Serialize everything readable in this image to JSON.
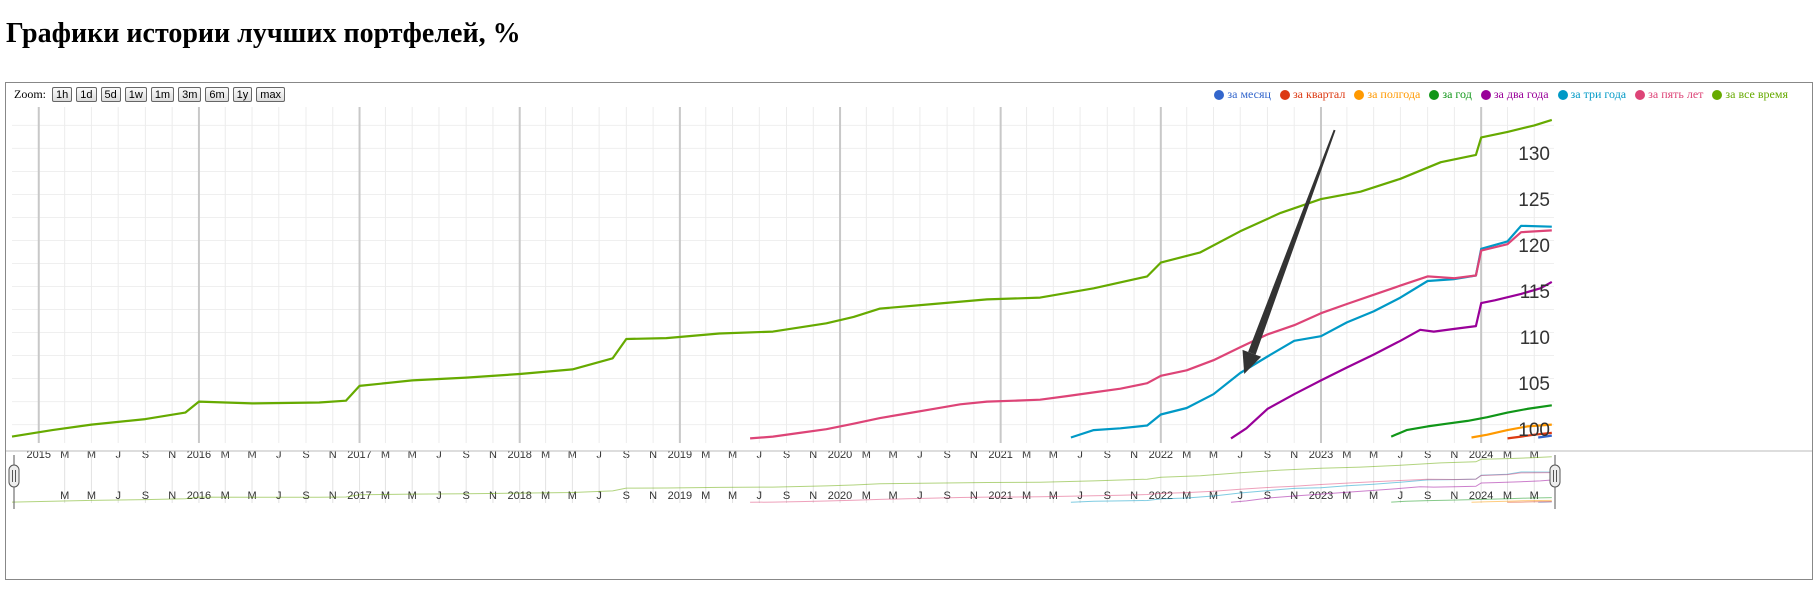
{
  "page": {
    "title": "Графики истории лучших портфелей, %"
  },
  "zoom": {
    "label": "Zoom:",
    "buttons": [
      "1h",
      "1d",
      "5d",
      "1w",
      "1m",
      "3m",
      "6m",
      "1y",
      "max"
    ]
  },
  "chart_data": {
    "type": "line",
    "title": "",
    "xlabel": "",
    "ylabel": "",
    "x_range": [
      "2014-11-01",
      "2024-06-15"
    ],
    "ylim": [
      98.5,
      135
    ],
    "y_ticks": [
      100,
      105,
      110,
      115,
      120,
      125,
      130
    ],
    "x_tick_labels": [
      {
        "date": "2015-01-01",
        "label": "2015"
      },
      {
        "date": "2015-03-01",
        "label": "M"
      },
      {
        "date": "2015-05-01",
        "label": "M"
      },
      {
        "date": "2015-07-01",
        "label": "J"
      },
      {
        "date": "2015-09-01",
        "label": "S"
      },
      {
        "date": "2015-11-01",
        "label": "N"
      },
      {
        "date": "2016-01-01",
        "label": "2016"
      },
      {
        "date": "2016-03-01",
        "label": "M"
      },
      {
        "date": "2016-05-01",
        "label": "M"
      },
      {
        "date": "2016-07-01",
        "label": "J"
      },
      {
        "date": "2016-09-01",
        "label": "S"
      },
      {
        "date": "2016-11-01",
        "label": "N"
      },
      {
        "date": "2017-01-01",
        "label": "2017"
      },
      {
        "date": "2017-03-01",
        "label": "M"
      },
      {
        "date": "2017-05-01",
        "label": "M"
      },
      {
        "date": "2017-07-01",
        "label": "J"
      },
      {
        "date": "2017-09-01",
        "label": "S"
      },
      {
        "date": "2017-11-01",
        "label": "N"
      },
      {
        "date": "2018-01-01",
        "label": "2018"
      },
      {
        "date": "2018-03-01",
        "label": "M"
      },
      {
        "date": "2018-05-01",
        "label": "M"
      },
      {
        "date": "2018-07-01",
        "label": "J"
      },
      {
        "date": "2018-09-01",
        "label": "S"
      },
      {
        "date": "2018-11-01",
        "label": "N"
      },
      {
        "date": "2019-01-01",
        "label": "2019"
      },
      {
        "date": "2019-03-01",
        "label": "M"
      },
      {
        "date": "2019-05-01",
        "label": "M"
      },
      {
        "date": "2019-07-01",
        "label": "J"
      },
      {
        "date": "2019-09-01",
        "label": "S"
      },
      {
        "date": "2019-11-01",
        "label": "N"
      },
      {
        "date": "2020-01-01",
        "label": "2020"
      },
      {
        "date": "2020-03-01",
        "label": "M"
      },
      {
        "date": "2020-05-01",
        "label": "M"
      },
      {
        "date": "2020-07-01",
        "label": "J"
      },
      {
        "date": "2020-09-01",
        "label": "S"
      },
      {
        "date": "2020-11-01",
        "label": "N"
      },
      {
        "date": "2021-01-01",
        "label": "2021"
      },
      {
        "date": "2021-03-01",
        "label": "M"
      },
      {
        "date": "2021-05-01",
        "label": "M"
      },
      {
        "date": "2021-07-01",
        "label": "J"
      },
      {
        "date": "2021-09-01",
        "label": "S"
      },
      {
        "date": "2021-11-01",
        "label": "N"
      },
      {
        "date": "2022-01-01",
        "label": "2022"
      },
      {
        "date": "2022-03-01",
        "label": "M"
      },
      {
        "date": "2022-05-01",
        "label": "M"
      },
      {
        "date": "2022-07-01",
        "label": "J"
      },
      {
        "date": "2022-09-01",
        "label": "S"
      },
      {
        "date": "2022-11-01",
        "label": "N"
      },
      {
        "date": "2023-01-01",
        "label": "2023"
      },
      {
        "date": "2023-03-01",
        "label": "M"
      },
      {
        "date": "2023-05-01",
        "label": "M"
      },
      {
        "date": "2023-07-01",
        "label": "J"
      },
      {
        "date": "2023-09-01",
        "label": "S"
      },
      {
        "date": "2023-11-01",
        "label": "N"
      },
      {
        "date": "2024-01-01",
        "label": "2024"
      },
      {
        "date": "2024-03-01",
        "label": "M"
      },
      {
        "date": "2024-05-01",
        "label": "M"
      }
    ],
    "navigator_tick_labels": [
      {
        "date": "2015-03-01",
        "label": "M"
      },
      {
        "date": "2015-05-01",
        "label": "M"
      },
      {
        "date": "2015-07-01",
        "label": "J"
      },
      {
        "date": "2015-09-01",
        "label": "S"
      },
      {
        "date": "2015-11-01",
        "label": "N"
      },
      {
        "date": "2016-01-01",
        "label": "2016"
      },
      {
        "date": "2016-03-01",
        "label": "M"
      },
      {
        "date": "2016-05-01",
        "label": "M"
      },
      {
        "date": "2016-07-01",
        "label": "J"
      },
      {
        "date": "2016-09-01",
        "label": "S"
      },
      {
        "date": "2016-11-01",
        "label": "N"
      },
      {
        "date": "2017-01-01",
        "label": "2017"
      },
      {
        "date": "2017-03-01",
        "label": "M"
      },
      {
        "date": "2017-05-01",
        "label": "M"
      },
      {
        "date": "2017-07-01",
        "label": "J"
      },
      {
        "date": "2017-09-01",
        "label": "S"
      },
      {
        "date": "2017-11-01",
        "label": "N"
      },
      {
        "date": "2018-01-01",
        "label": "2018"
      },
      {
        "date": "2018-03-01",
        "label": "M"
      },
      {
        "date": "2018-05-01",
        "label": "M"
      },
      {
        "date": "2018-07-01",
        "label": "J"
      },
      {
        "date": "2018-09-01",
        "label": "S"
      },
      {
        "date": "2018-11-01",
        "label": "N"
      },
      {
        "date": "2019-01-01",
        "label": "2019"
      },
      {
        "date": "2019-03-01",
        "label": "M"
      },
      {
        "date": "2019-05-01",
        "label": "M"
      },
      {
        "date": "2019-07-01",
        "label": "J"
      },
      {
        "date": "2019-09-01",
        "label": "S"
      },
      {
        "date": "2019-11-01",
        "label": "N"
      },
      {
        "date": "2020-01-01",
        "label": "2020"
      },
      {
        "date": "2020-03-01",
        "label": "M"
      },
      {
        "date": "2020-05-01",
        "label": "M"
      },
      {
        "date": "2020-07-01",
        "label": "J"
      },
      {
        "date": "2020-09-01",
        "label": "S"
      },
      {
        "date": "2020-11-01",
        "label": "N"
      },
      {
        "date": "2021-01-01",
        "label": "2021"
      },
      {
        "date": "2021-03-01",
        "label": "M"
      },
      {
        "date": "2021-05-01",
        "label": "M"
      },
      {
        "date": "2021-07-01",
        "label": "J"
      },
      {
        "date": "2021-09-01",
        "label": "S"
      },
      {
        "date": "2021-11-01",
        "label": "N"
      },
      {
        "date": "2022-01-01",
        "label": "2022"
      },
      {
        "date": "2022-03-01",
        "label": "M"
      },
      {
        "date": "2022-05-01",
        "label": "M"
      },
      {
        "date": "2022-07-01",
        "label": "J"
      },
      {
        "date": "2022-09-01",
        "label": "S"
      },
      {
        "date": "2022-11-01",
        "label": "N"
      },
      {
        "date": "2023-01-01",
        "label": "2023"
      },
      {
        "date": "2023-03-01",
        "label": "M"
      },
      {
        "date": "2023-05-01",
        "label": "M"
      },
      {
        "date": "2023-07-01",
        "label": "J"
      },
      {
        "date": "2023-09-01",
        "label": "S"
      },
      {
        "date": "2023-11-01",
        "label": "N"
      },
      {
        "date": "2024-01-01",
        "label": "2024"
      },
      {
        "date": "2024-03-01",
        "label": "M"
      },
      {
        "date": "2024-05-01",
        "label": "M"
      }
    ],
    "legend_position": "top-right",
    "grid": true,
    "annotation": {
      "type": "arrow",
      "from": {
        "date": "2023-02-01",
        "y": 132.5
      },
      "to": {
        "date": "2022-07-10",
        "y": 106.0
      }
    },
    "series": [
      {
        "name": "за месяц",
        "color": "#3366cc",
        "dates": [
          "2024-05-10",
          "2024-05-25",
          "2024-06-10"
        ],
        "values": [
          99.1,
          99.2,
          99.3
        ]
      },
      {
        "name": "за квартал",
        "color": "#dc3912",
        "dates": [
          "2024-03-01",
          "2024-04-01",
          "2024-05-01",
          "2024-06-10"
        ],
        "values": [
          99.0,
          99.2,
          99.4,
          99.6
        ]
      },
      {
        "name": "за полгода",
        "color": "#ff9900",
        "dates": [
          "2023-12-10",
          "2024-01-15",
          "2024-03-01",
          "2024-04-15",
          "2024-06-10"
        ],
        "values": [
          99.1,
          99.4,
          99.9,
          100.3,
          100.5
        ]
      },
      {
        "name": "за год",
        "color": "#109618",
        "dates": [
          "2023-06-10",
          "2023-07-15",
          "2023-09-01",
          "2023-10-15",
          "2023-12-01",
          "2024-01-15",
          "2024-03-01",
          "2024-04-15",
          "2024-06-10"
        ],
        "values": [
          99.2,
          99.9,
          100.3,
          100.6,
          100.9,
          101.3,
          101.8,
          102.2,
          102.6
        ]
      },
      {
        "name": "за два года",
        "color": "#990099",
        "dates": [
          "2022-06-10",
          "2022-07-15",
          "2022-09-01",
          "2022-11-01",
          "2023-01-01",
          "2023-03-01",
          "2023-05-01",
          "2023-07-01",
          "2023-08-15",
          "2023-09-15",
          "2023-11-01",
          "2023-12-20",
          "2024-01-01",
          "2024-02-01",
          "2024-04-01",
          "2024-05-15",
          "2024-06-10"
        ],
        "values": [
          99.0,
          100.1,
          102.2,
          103.8,
          105.3,
          106.7,
          108.1,
          109.6,
          110.8,
          110.6,
          110.9,
          111.2,
          113.7,
          114.0,
          114.7,
          115.3,
          116.0
        ]
      },
      {
        "name": "за три года",
        "color": "#0099c6",
        "dates": [
          "2021-06-10",
          "2021-08-01",
          "2021-10-01",
          "2021-12-01",
          "2022-01-01",
          "2022-03-01",
          "2022-05-01",
          "2022-07-01",
          "2022-09-01",
          "2022-11-01",
          "2023-01-01",
          "2023-03-01",
          "2023-05-01",
          "2023-07-01",
          "2023-09-01",
          "2023-11-01",
          "2023-12-20",
          "2024-01-01",
          "2024-03-01",
          "2024-04-01",
          "2024-06-10"
        ],
        "values": [
          99.1,
          99.9,
          100.1,
          100.4,
          101.6,
          102.3,
          103.8,
          106.1,
          107.9,
          109.6,
          110.1,
          111.6,
          112.8,
          114.3,
          116.1,
          116.3,
          116.7,
          119.6,
          120.4,
          122.1,
          122.0
        ]
      },
      {
        "name": "за пять лет",
        "color": "#dd4477",
        "dates": [
          "2019-06-10",
          "2019-08-01",
          "2019-10-01",
          "2019-12-01",
          "2020-02-01",
          "2020-04-01",
          "2020-06-01",
          "2020-08-01",
          "2020-10-01",
          "2020-12-01",
          "2021-02-01",
          "2021-04-01",
          "2021-06-01",
          "2021-08-01",
          "2021-10-01",
          "2021-12-01",
          "2022-01-01",
          "2022-03-01",
          "2022-05-01",
          "2022-07-01",
          "2022-09-01",
          "2022-11-01",
          "2023-01-01",
          "2023-03-01",
          "2023-05-01",
          "2023-07-01",
          "2023-09-01",
          "2023-11-01",
          "2023-12-20",
          "2024-01-01",
          "2024-03-01",
          "2024-04-01",
          "2024-06-10"
        ],
        "values": [
          99.0,
          99.2,
          99.6,
          100.0,
          100.6,
          101.2,
          101.7,
          102.2,
          102.7,
          103.0,
          103.1,
          103.2,
          103.6,
          104.0,
          104.4,
          105.0,
          105.8,
          106.4,
          107.5,
          108.9,
          110.3,
          111.3,
          112.6,
          113.6,
          114.6,
          115.6,
          116.6,
          116.4,
          116.7,
          119.4,
          120.1,
          121.4,
          121.6
        ]
      },
      {
        "name": "за все время",
        "color": "#66aa00",
        "dates": [
          "2014-11-01",
          "2015-02-01",
          "2015-05-01",
          "2015-09-01",
          "2015-12-01",
          "2016-01-01",
          "2016-05-01",
          "2016-10-01",
          "2016-12-01",
          "2017-01-01",
          "2017-05-01",
          "2017-09-01",
          "2018-01-01",
          "2018-05-01",
          "2018-08-01",
          "2018-09-01",
          "2018-12-01",
          "2019-04-01",
          "2019-08-01",
          "2019-12-01",
          "2020-02-01",
          "2020-04-01",
          "2020-08-01",
          "2020-12-01",
          "2021-04-01",
          "2021-08-01",
          "2021-12-01",
          "2022-01-01",
          "2022-04-01",
          "2022-07-01",
          "2022-10-01",
          "2023-01-01",
          "2023-04-01",
          "2023-07-01",
          "2023-10-01",
          "2023-12-20",
          "2024-01-01",
          "2024-03-01",
          "2024-05-01",
          "2024-06-10"
        ],
        "values": [
          99.2,
          99.9,
          100.5,
          101.1,
          101.8,
          103.0,
          102.8,
          102.9,
          103.1,
          104.7,
          105.3,
          105.6,
          106.0,
          106.5,
          107.7,
          109.8,
          109.9,
          110.4,
          110.6,
          111.5,
          112.2,
          113.1,
          113.6,
          114.1,
          114.3,
          115.3,
          116.6,
          118.1,
          119.2,
          121.5,
          123.5,
          125.0,
          125.8,
          127.2,
          129.0,
          129.8,
          131.7,
          132.3,
          133.0,
          133.6
        ]
      }
    ]
  }
}
